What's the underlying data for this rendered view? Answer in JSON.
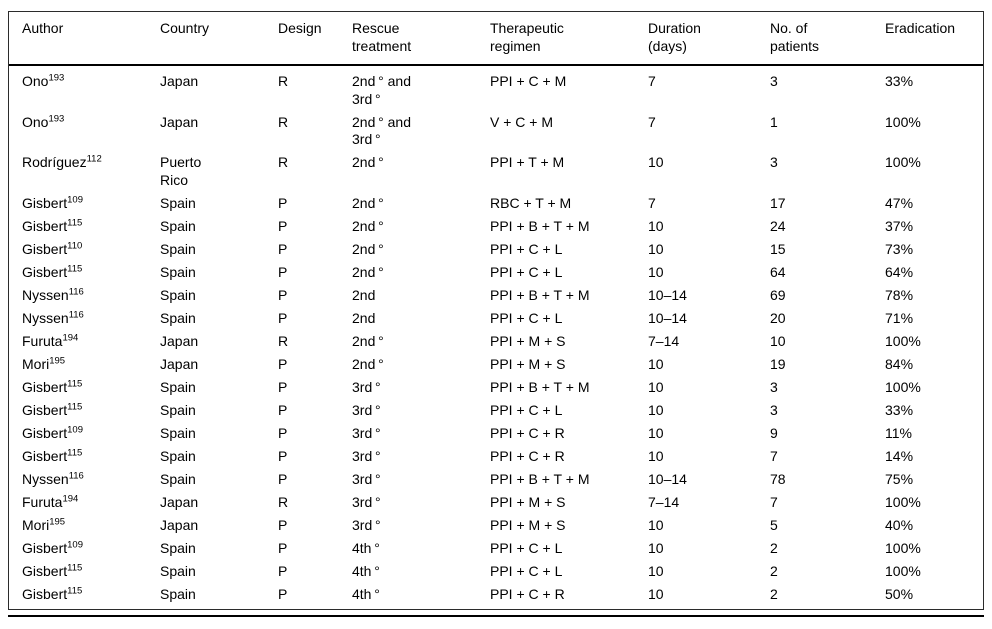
{
  "colors": {
    "background": "#ffffff",
    "text": "#000000",
    "rule": "#000000",
    "hairline": "#2b2b2b"
  },
  "table": {
    "headers": [
      "Author",
      "Country",
      "Design",
      "Rescue\ntreatment",
      "Therapeutic\nregimen",
      "Duration\n(days)",
      "No. of\npatients",
      "Eradication"
    ],
    "rows": [
      {
        "author": "Ono",
        "ref": "193",
        "country": "Japan",
        "design": "R",
        "rescue": "2nd ° and\n3rd °",
        "regimen": "PPI + C + M",
        "duration": "7",
        "patients": "3",
        "eradication": "33%"
      },
      {
        "author": "Ono",
        "ref": "193",
        "country": "Japan",
        "design": "R",
        "rescue": "2nd ° and\n3rd °",
        "regimen": "V + C + M",
        "duration": "7",
        "patients": "1",
        "eradication": "100%"
      },
      {
        "author": "Rodríguez",
        "ref": "112",
        "country": "Puerto\nRico",
        "design": "R",
        "rescue": "2nd °",
        "regimen": "PPI + T + M",
        "duration": "10",
        "patients": "3",
        "eradication": "100%"
      },
      {
        "author": "Gisbert",
        "ref": "109",
        "country": "Spain",
        "design": "P",
        "rescue": "2nd °",
        "regimen": "RBC + T + M",
        "duration": "7",
        "patients": "17",
        "eradication": "47%"
      },
      {
        "author": "Gisbert",
        "ref": "115",
        "country": "Spain",
        "design": "P",
        "rescue": "2nd °",
        "regimen": "PPI + B + T + M",
        "duration": "10",
        "patients": "24",
        "eradication": "37%"
      },
      {
        "author": "Gisbert",
        "ref": "110",
        "country": "Spain",
        "design": "P",
        "rescue": "2nd °",
        "regimen": "PPI + C + L",
        "duration": "10",
        "patients": "15",
        "eradication": "73%"
      },
      {
        "author": "Gisbert",
        "ref": "115",
        "country": "Spain",
        "design": "P",
        "rescue": "2nd °",
        "regimen": "PPI + C + L",
        "duration": "10",
        "patients": "64",
        "eradication": "64%"
      },
      {
        "author": "Nyssen",
        "ref": "116",
        "country": "Spain",
        "design": "P",
        "rescue": "2nd",
        "regimen": "PPI + B + T + M",
        "duration": "10–14",
        "patients": "69",
        "eradication": "78%"
      },
      {
        "author": "Nyssen",
        "ref": "116",
        "country": "Spain",
        "design": "P",
        "rescue": "2nd",
        "regimen": "PPI + C + L",
        "duration": "10–14",
        "patients": "20",
        "eradication": "71%"
      },
      {
        "author": "Furuta",
        "ref": "194",
        "country": "Japan",
        "design": "R",
        "rescue": "2nd °",
        "regimen": "PPI + M + S",
        "duration": "7–14",
        "patients": "10",
        "eradication": "100%"
      },
      {
        "author": "Mori",
        "ref": "195",
        "country": "Japan",
        "design": "P",
        "rescue": "2nd °",
        "regimen": "PPI + M + S",
        "duration": "10",
        "patients": "19",
        "eradication": "84%"
      },
      {
        "author": "Gisbert",
        "ref": "115",
        "country": "Spain",
        "design": "P",
        "rescue": "3rd °",
        "regimen": "PPI + B + T + M",
        "duration": "10",
        "patients": "3",
        "eradication": "100%"
      },
      {
        "author": "Gisbert",
        "ref": "115",
        "country": "Spain",
        "design": "P",
        "rescue": "3rd °",
        "regimen": "PPI + C + L",
        "duration": "10",
        "patients": "3",
        "eradication": "33%"
      },
      {
        "author": "Gisbert",
        "ref": "109",
        "country": "Spain",
        "design": "P",
        "rescue": "3rd °",
        "regimen": "PPI + C + R",
        "duration": "10",
        "patients": "9",
        "eradication": "11%"
      },
      {
        "author": "Gisbert",
        "ref": "115",
        "country": "Spain",
        "design": "P",
        "rescue": "3rd °",
        "regimen": "PPI + C + R",
        "duration": "10",
        "patients": "7",
        "eradication": "14%"
      },
      {
        "author": "Nyssen",
        "ref": "116",
        "country": "Spain",
        "design": "P",
        "rescue": "3rd °",
        "regimen": "PPI + B + T + M",
        "duration": "10–14",
        "patients": "78",
        "eradication": "75%"
      },
      {
        "author": "Furuta",
        "ref": "194",
        "country": "Japan",
        "design": "R",
        "rescue": "3rd °",
        "regimen": "PPI + M + S",
        "duration": "7–14",
        "patients": "7",
        "eradication": "100%"
      },
      {
        "author": "Mori",
        "ref": "195",
        "country": "Japan",
        "design": "P",
        "rescue": "3rd °",
        "regimen": "PPI + M + S",
        "duration": "10",
        "patients": "5",
        "eradication": "40%"
      },
      {
        "author": "Gisbert",
        "ref": "109",
        "country": "Spain",
        "design": "P",
        "rescue": "4th °",
        "regimen": "PPI + C + L",
        "duration": "10",
        "patients": "2",
        "eradication": "100%"
      },
      {
        "author": "Gisbert",
        "ref": "115",
        "country": "Spain",
        "design": "P",
        "rescue": "4th °",
        "regimen": "PPI + C + L",
        "duration": "10",
        "patients": "2",
        "eradication": "100%"
      },
      {
        "author": "Gisbert",
        "ref": "115",
        "country": "Spain",
        "design": "P",
        "rescue": "4th °",
        "regimen": "PPI + C + R",
        "duration": "10",
        "patients": "2",
        "eradication": "50%"
      }
    ]
  }
}
